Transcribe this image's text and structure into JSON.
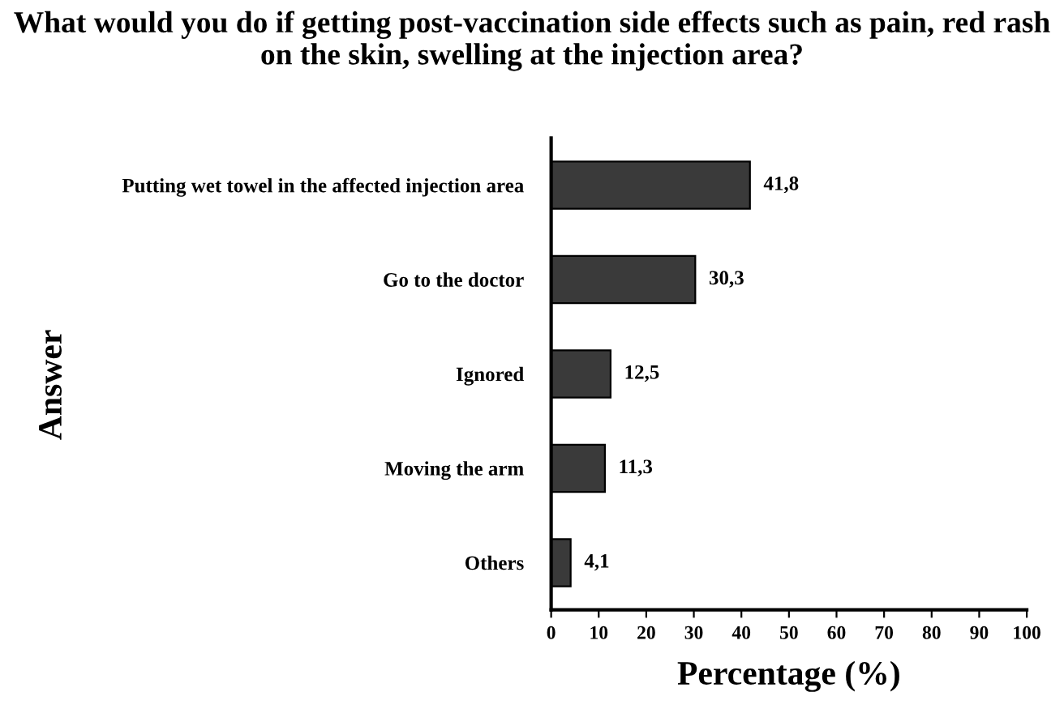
{
  "chart_data": {
    "type": "bar",
    "orientation": "horizontal",
    "title": "What would you do if getting post-vaccination side effects such as pain, red rash on the skin, swelling at the injection area?",
    "xlabel": "Percentage (%)",
    "ylabel": "Answer",
    "categories": [
      "Putting wet towel in the affected injection area",
      "Go to the doctor",
      "Ignored",
      "Moving the arm",
      "Others"
    ],
    "values": [
      41.8,
      30.3,
      12.5,
      11.3,
      4.1
    ],
    "value_labels": [
      "41,8",
      "30,3",
      "12,5",
      "11,3",
      "4,1"
    ],
    "color": "#3a3a3a",
    "xlim": [
      0,
      100
    ],
    "xticks": [
      0,
      10,
      20,
      30,
      40,
      50,
      60,
      70,
      80,
      90,
      100
    ],
    "grid": false,
    "legend": false
  }
}
